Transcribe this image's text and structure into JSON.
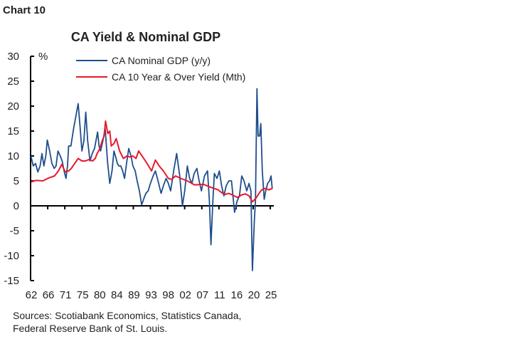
{
  "header": {
    "chart_label": "Chart 10"
  },
  "chart_data": {
    "type": "line",
    "title": "CA Yield & Nominal GDP",
    "ylabel": "%",
    "ylim": [
      -15,
      30
    ],
    "yticks": [
      30,
      25,
      20,
      15,
      10,
      5,
      0,
      -5,
      -10,
      -15
    ],
    "xlim": [
      1962,
      2025.9
    ],
    "xtick_labels": [
      "62",
      "66",
      "71",
      "75",
      "80",
      "84",
      "89",
      "93",
      "98",
      "02",
      "07",
      "11",
      "16",
      "20",
      "25"
    ],
    "grid": false,
    "legend_placement": "top",
    "series": [
      {
        "name": "CA Nominal GDP (y/y)",
        "color": "#1f4e8c",
        "x": [
          1962.1,
          1962.7,
          1963.3,
          1963.9,
          1964.5,
          1965.0,
          1965.5,
          1966.0,
          1966.4,
          1967.0,
          1967.6,
          1968.2,
          1968.7,
          1969.2,
          1969.8,
          1970.3,
          1970.8,
          1971.3,
          1971.7,
          1972.0,
          1972.6,
          1973.3,
          1973.9,
          1974.5,
          1975.0,
          1975.5,
          1976.0,
          1976.5,
          1977.0,
          1977.6,
          1978.2,
          1978.8,
          1979.6,
          1980.0,
          1980.4,
          1981.0,
          1981.6,
          1982.2,
          1982.8,
          1983.4,
          1983.9,
          1984.3,
          1984.8,
          1985.2,
          1985.7,
          1986.2,
          1986.7,
          1987.3,
          1987.8,
          1988.4,
          1988.9,
          1989.5,
          1990.0,
          1990.6,
          1991.2,
          1991.8,
          1992.3,
          1992.9,
          1993.5,
          1994.2,
          1994.8,
          1995.5,
          1996.3,
          1996.9,
          1997.6,
          1998.2,
          1998.8,
          1999.6,
          2000.4,
          2001.2,
          2001.9,
          2002.5,
          2003.2,
          2003.8,
          2004.4,
          2005.0,
          2005.7,
          2006.3,
          2006.9,
          2007.7,
          2008.5,
          2009.0,
          2009.4,
          2009.9,
          2010.3,
          2011.0,
          2011.6,
          2012.2,
          2012.8,
          2013.4,
          2014.1,
          2014.8,
          2015.6,
          2016.3,
          2016.9,
          2017.5,
          2018.1,
          2018.8,
          2019.4,
          2019.9,
          2020.3,
          2020.8,
          2021.1,
          2021.5,
          2021.8,
          2022.2,
          2022.5,
          2022.9,
          2023.4,
          2023.8,
          2024.3,
          2024.8,
          2025.2,
          2025.5
        ],
        "values": [
          10,
          8,
          8.5,
          6.8,
          8,
          10.5,
          8,
          10,
          13.2,
          11,
          8.5,
          7.5,
          8,
          11,
          10,
          9,
          7,
          5.5,
          8,
          12,
          12,
          15.5,
          18,
          20.5,
          16,
          11,
          13,
          18.8,
          13,
          9,
          10.5,
          11.5,
          14.8,
          12,
          11,
          13,
          15.5,
          9,
          4.5,
          7,
          11,
          10,
          8.5,
          8,
          8,
          7,
          5.5,
          9,
          11.5,
          10,
          8,
          7,
          5,
          3,
          0.2,
          1.5,
          2.5,
          3,
          4.5,
          6,
          7,
          5,
          2.5,
          4,
          5.5,
          4.5,
          3,
          7,
          10.5,
          6,
          0,
          3,
          8,
          5.5,
          4.5,
          6.5,
          7.5,
          5,
          3,
          6,
          7,
          1,
          -7.8,
          1,
          6.5,
          5.5,
          7,
          4,
          2,
          4,
          5,
          5,
          -1.3,
          1,
          2,
          6,
          5,
          3,
          4.5,
          3,
          -13,
          -3,
          1,
          23.5,
          14,
          14,
          16.5,
          7,
          1.3,
          3,
          4.5,
          5,
          6,
          3.5
        ]
      },
      {
        "name": "CA 10 Year & Over Yield  (Mth)",
        "color": "#e8192c",
        "x": [
          1962.1,
          1963.5,
          1965.2,
          1966.8,
          1968.3,
          1969.3,
          1970.2,
          1971.1,
          1972.0,
          1972.7,
          1973.6,
          1974.5,
          1975.5,
          1976.4,
          1977.4,
          1978.3,
          1979.0,
          1979.5,
          1980.2,
          1980.8,
          1981.3,
          1981.7,
          1982.3,
          1982.8,
          1983.2,
          1983.9,
          1984.5,
          1985.4,
          1986.4,
          1987.3,
          1988.1,
          1988.9,
          1989.7,
          1990.4,
          1991.5,
          1992.6,
          1993.8,
          1994.8,
          1995.8,
          1996.9,
          1998.2,
          1999.1,
          2000.1,
          2001.5,
          2003.2,
          2005.1,
          2007.5,
          2009.4,
          2011.3,
          2012.3,
          2013.2,
          2014.1,
          2015.0,
          2016.3,
          2017.5,
          2018.5,
          2019.4,
          2020.3,
          2021.2,
          2021.8,
          2022.5,
          2023.1,
          2023.7,
          2024.6,
          2025.6
        ],
        "values": [
          4.8,
          5.1,
          5,
          5.6,
          6,
          7,
          8.3,
          6.8,
          7,
          7.5,
          8.5,
          9.5,
          9,
          9,
          9.3,
          9,
          9.5,
          10.5,
          11.5,
          13,
          14,
          17,
          14.5,
          15,
          12,
          12.5,
          13.5,
          11,
          9.5,
          10,
          9.8,
          10,
          9.5,
          11,
          9.8,
          8.5,
          7,
          9.2,
          8,
          7,
          5.5,
          5.3,
          6,
          5.5,
          5,
          4.2,
          4.3,
          3.7,
          3.2,
          2.6,
          2.3,
          2.5,
          2.2,
          1.7,
          2.2,
          2.4,
          2,
          0.8,
          1.5,
          2.2,
          3,
          3.4,
          3.5,
          3.2,
          3.5
        ]
      }
    ]
  },
  "footer": {
    "source_line1": "Sources: Scotiabank Economics, Statistics Canada,",
    "source_line2": "Federal Reserve Bank of St. Louis."
  }
}
